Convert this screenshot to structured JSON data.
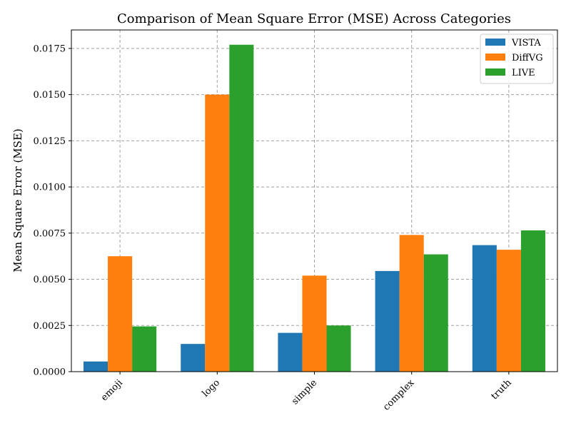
{
  "chart_data": {
    "type": "bar",
    "title": "Comparison of Mean Square Error (MSE) Across Categories",
    "xlabel": "",
    "ylabel": "Mean Square Error (MSE)",
    "categories": [
      "emoji",
      "logo",
      "simple",
      "complex",
      "truth"
    ],
    "series": [
      {
        "name": "VISTA",
        "color": "#1f77b4",
        "values": [
          0.00055,
          0.0015,
          0.0021,
          0.00545,
          0.00685
        ]
      },
      {
        "name": "DiffVG",
        "color": "#ff7f0e",
        "values": [
          0.00625,
          0.015,
          0.0052,
          0.0074,
          0.0066
        ]
      },
      {
        "name": "LIVE",
        "color": "#2ca02c",
        "values": [
          0.00245,
          0.0177,
          0.0025,
          0.00635,
          0.00765
        ]
      }
    ],
    "ylim": [
      0,
      0.0185
    ],
    "yticks": [
      "0.0000",
      "0.0025",
      "0.0050",
      "0.0075",
      "0.0100",
      "0.0125",
      "0.0150",
      "0.0175"
    ],
    "grid": true,
    "legend_position": "top-right"
  }
}
